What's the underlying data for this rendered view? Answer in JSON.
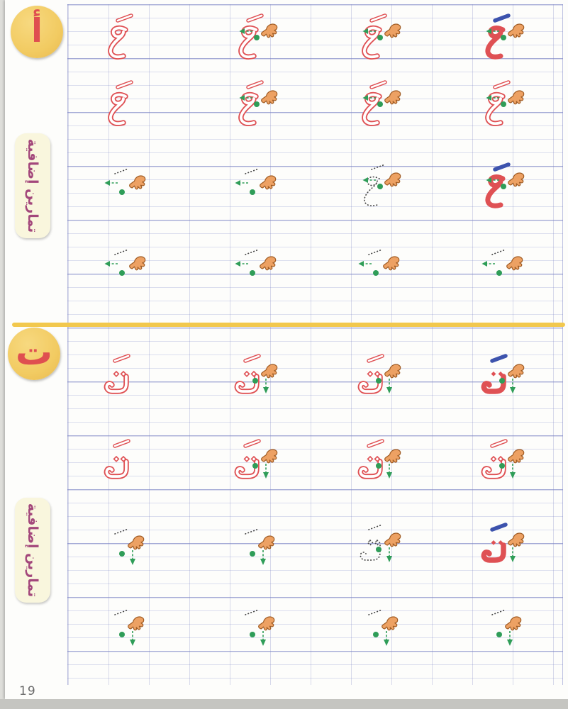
{
  "page": {
    "number": "19"
  },
  "colors": {
    "letter_red": "#df5154",
    "fatha_blue": "#3d53ad",
    "trace_dot_gray": "#4a4a4a",
    "green": "#2f9d58",
    "hand_fill": "#eda163",
    "hand_outline": "#a05c24",
    "circle_yellow": "#f2cb62",
    "banner_bg": "#f9f6dd",
    "banner_text": "#a3477b",
    "divider_yellow": "#f2c84d",
    "grid_line": "#8c94c8"
  },
  "sections": [
    {
      "id": "hamza",
      "circle_letter": "أ",
      "banner_label": "تمارين إضافية",
      "glyph": "hamza",
      "rows": [
        {
          "cells": [
            {
              "letter": "outline",
              "fatha": "outline",
              "hand": false,
              "dot": false,
              "arrow": "none"
            },
            {
              "letter": "outline",
              "fatha": "outline",
              "hand": true,
              "dot": true,
              "arrow": "left"
            },
            {
              "letter": "outline",
              "fatha": "outline",
              "hand": true,
              "dot": true,
              "arrow": "left"
            },
            {
              "letter": "solid",
              "fatha": "blue",
              "hand": true,
              "dot": true,
              "arrow": "left"
            }
          ]
        },
        {
          "cells": [
            {
              "letter": "outline",
              "fatha": "outline",
              "hand": false,
              "dot": false,
              "arrow": "none"
            },
            {
              "letter": "outline",
              "fatha": "outline",
              "hand": true,
              "dot": true,
              "arrow": "left"
            },
            {
              "letter": "outline",
              "fatha": "outline",
              "hand": true,
              "dot": true,
              "arrow": "left"
            },
            {
              "letter": "outline",
              "fatha": "outline",
              "hand": true,
              "dot": true,
              "arrow": "left"
            }
          ]
        },
        {
          "cells": [
            {
              "letter": "none",
              "fatha": "dotted",
              "hand": true,
              "dot": true,
              "arrow": "left"
            },
            {
              "letter": "none",
              "fatha": "dotted",
              "hand": true,
              "dot": true,
              "arrow": "left"
            },
            {
              "letter": "dotted",
              "fatha": "dotted",
              "hand": true,
              "dot": true,
              "arrow": "left"
            },
            {
              "letter": "solid",
              "fatha": "blue",
              "hand": true,
              "dot": true,
              "arrow": "left"
            }
          ]
        },
        {
          "cells": [
            {
              "letter": "none",
              "fatha": "dotted",
              "hand": true,
              "dot": true,
              "arrow": "left"
            },
            {
              "letter": "none",
              "fatha": "dotted",
              "hand": true,
              "dot": true,
              "arrow": "left"
            },
            {
              "letter": "none",
              "fatha": "dotted",
              "hand": true,
              "dot": true,
              "arrow": "left"
            },
            {
              "letter": "none",
              "fatha": "dotted",
              "hand": true,
              "dot": true,
              "arrow": "left"
            }
          ]
        }
      ]
    },
    {
      "id": "taa",
      "circle_letter": "ت",
      "banner_label": "تمارين إضافية",
      "glyph": "taa",
      "rows": [
        {
          "cells": [
            {
              "letter": "outline",
              "fatha": "outline",
              "hand": false,
              "dot": false,
              "arrow": "none"
            },
            {
              "letter": "outline",
              "fatha": "outline",
              "hand": true,
              "dot": true,
              "arrow": "down"
            },
            {
              "letter": "outline",
              "fatha": "outline",
              "hand": true,
              "dot": true,
              "arrow": "down"
            },
            {
              "letter": "solid",
              "fatha": "blue",
              "hand": true,
              "dot": true,
              "arrow": "down"
            }
          ]
        },
        {
          "cells": [
            {
              "letter": "outline",
              "fatha": "outline",
              "hand": false,
              "dot": false,
              "arrow": "none"
            },
            {
              "letter": "outline",
              "fatha": "outline",
              "hand": true,
              "dot": true,
              "arrow": "down"
            },
            {
              "letter": "outline",
              "fatha": "outline",
              "hand": true,
              "dot": true,
              "arrow": "down"
            },
            {
              "letter": "outline",
              "fatha": "outline",
              "hand": true,
              "dot": true,
              "arrow": "down"
            }
          ]
        },
        {
          "cells": [
            {
              "letter": "none",
              "fatha": "dotted",
              "hand": true,
              "dot": true,
              "arrow": "down"
            },
            {
              "letter": "none",
              "fatha": "dotted",
              "hand": true,
              "dot": true,
              "arrow": "down"
            },
            {
              "letter": "dotted",
              "fatha": "dotted",
              "hand": true,
              "dot": true,
              "arrow": "down"
            },
            {
              "letter": "solid",
              "fatha": "blue",
              "hand": true,
              "dot": false,
              "arrow": "down"
            }
          ]
        },
        {
          "cells": [
            {
              "letter": "none",
              "fatha": "dotted",
              "hand": true,
              "dot": true,
              "arrow": "down"
            },
            {
              "letter": "none",
              "fatha": "dotted",
              "hand": true,
              "dot": true,
              "arrow": "down"
            },
            {
              "letter": "none",
              "fatha": "dotted",
              "hand": true,
              "dot": true,
              "arrow": "down"
            },
            {
              "letter": "none",
              "fatha": "dotted",
              "hand": true,
              "dot": true,
              "arrow": "down"
            }
          ]
        }
      ]
    }
  ]
}
